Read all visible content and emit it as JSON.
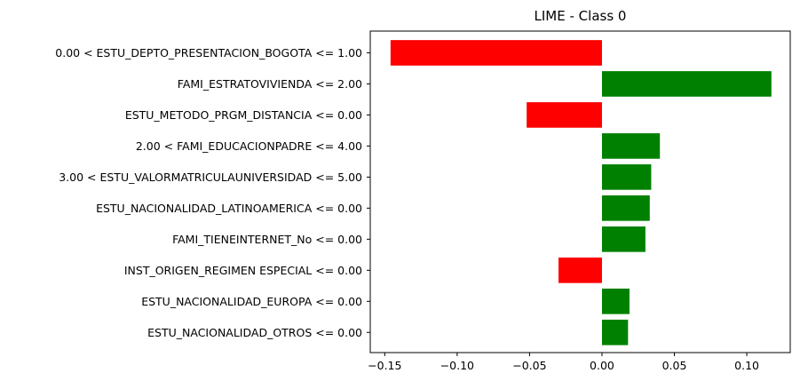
{
  "chart_data": {
    "type": "bar",
    "orientation": "horizontal",
    "title": "LIME - Class 0",
    "xlabel": "",
    "ylabel": "",
    "xlim": [
      -0.16,
      0.13
    ],
    "xticks": [
      -0.15,
      -0.1,
      -0.05,
      0.0,
      0.05,
      0.1
    ],
    "xtick_labels": [
      "−0.15",
      "−0.10",
      "−0.05",
      "0.00",
      "0.05",
      "0.10"
    ],
    "grid": false,
    "legend": "none",
    "colors": {
      "positive": "#008000",
      "negative": "#ff0000"
    },
    "categories": [
      "0.00 < ESTU_DEPTO_PRESENTACION_BOGOTA <= 1.00",
      "FAMI_ESTRATOVIVIENDA <= 2.00",
      "ESTU_METODO_PRGM_DISTANCIA <= 0.00",
      "2.00 < FAMI_EDUCACIONPADRE <= 4.00",
      "3.00 < ESTU_VALORMATRICULAUNIVERSIDAD <= 5.00",
      "ESTU_NACIONALIDAD_LATINOAMERICA <= 0.00",
      "FAMI_TIENEINTERNET_No <= 0.00",
      "INST_ORIGEN_REGIMEN ESPECIAL <= 0.00",
      "ESTU_NACIONALIDAD_EUROPA <= 0.00",
      "ESTU_NACIONALIDAD_OTROS <= 0.00"
    ],
    "values": [
      -0.146,
      0.117,
      -0.052,
      0.04,
      0.034,
      0.033,
      0.03,
      -0.03,
      0.019,
      0.018
    ]
  }
}
